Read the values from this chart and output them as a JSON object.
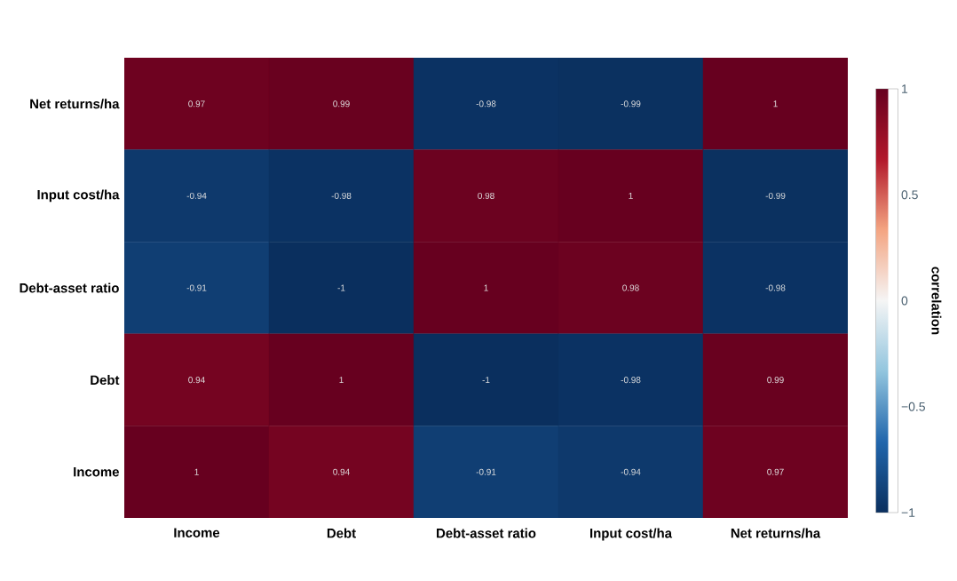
{
  "chart_data": {
    "type": "heatmap",
    "categories": [
      "Income",
      "Debt",
      "Debt-asset ratio",
      "Input cost/ha",
      "Net returns/ha"
    ],
    "y_categories": [
      "Net returns/ha",
      "Input cost/ha",
      "Debt-asset ratio",
      "Debt",
      "Income"
    ],
    "cells": [
      [
        0.97,
        0.99,
        -0.98,
        -0.99,
        1
      ],
      [
        -0.94,
        -0.98,
        0.98,
        1,
        -0.99
      ],
      [
        -0.91,
        -1,
        1,
        0.98,
        -0.98
      ],
      [
        0.94,
        1,
        -1,
        -0.98,
        0.99
      ],
      [
        1,
        0.94,
        -0.91,
        -0.94,
        0.97
      ]
    ],
    "data_labels": true,
    "clim": [
      -1,
      1
    ],
    "cticks": [
      {
        "value": -1,
        "label": "−1"
      },
      {
        "value": -0.5,
        "label": "−0.5"
      },
      0,
      0.5,
      1
    ],
    "clabel": "correlation"
  }
}
